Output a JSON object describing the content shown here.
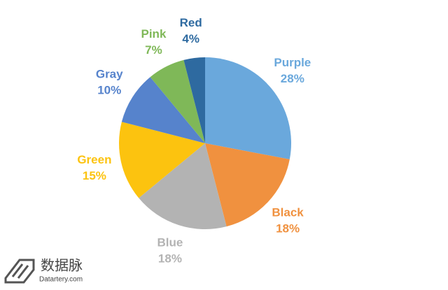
{
  "chart_data": {
    "type": "pie",
    "categories": [
      "Purple",
      "Black",
      "Blue",
      "Green",
      "Gray",
      "Pink",
      "Red"
    ],
    "values": [
      28,
      18,
      18,
      15,
      10,
      7,
      4
    ],
    "value_labels": [
      "28%",
      "18%",
      "18%",
      "15%",
      "10%",
      "7%",
      "4%"
    ],
    "colors": [
      "#6aa8dc",
      "#f0913f",
      "#b3b3b3",
      "#fcc30f",
      "#5683cc",
      "#7fb858",
      "#2e6aa0"
    ],
    "start_angle": 0,
    "direction": "clockwise"
  },
  "watermark": {
    "name": "数据脉",
    "site": "Datartery.com"
  }
}
